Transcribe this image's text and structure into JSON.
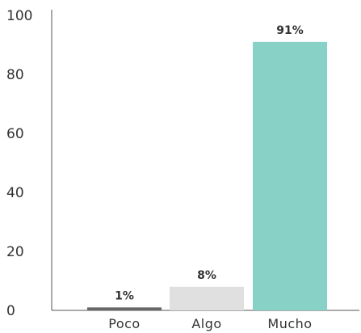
{
  "chart_data": {
    "type": "bar",
    "categories": [
      "Poco",
      "Algo",
      "Mucho"
    ],
    "values": [
      1,
      8,
      91
    ],
    "data_labels": [
      "1%",
      "8%",
      "91%"
    ],
    "colors": [
      "#666666",
      "#e0e0e0",
      "#87d1c6"
    ],
    "title": "",
    "xlabel": "",
    "ylabel": "",
    "ylim": [
      0,
      100
    ],
    "yticks": [
      0,
      20,
      40,
      60,
      80,
      100
    ],
    "grid": false,
    "axis_color": "#555555"
  }
}
